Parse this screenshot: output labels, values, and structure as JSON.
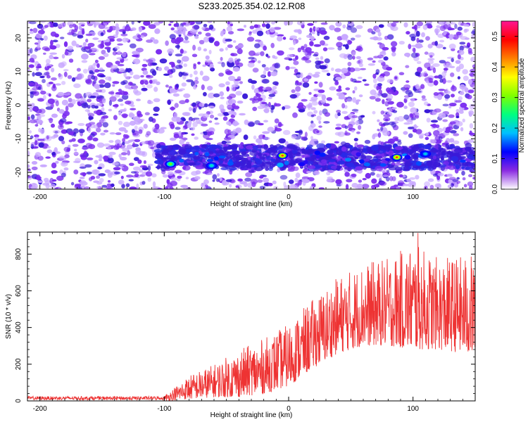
{
  "title": "S233.2025.354.02.12.R08",
  "colors": {
    "line": "#ee3333",
    "scatter_background": "#c8a8ff",
    "scatter_main": "#7a2cf0",
    "scatter_dark": "#3a1ad8"
  },
  "chart_data": [
    {
      "type": "heatmap",
      "xlabel": "Height of straight line (km)",
      "ylabel": "Frequency (Hz)",
      "xlim": [
        -210,
        150
      ],
      "ylim": [
        -25,
        25
      ],
      "xticks": [
        -200,
        -100,
        0,
        100
      ],
      "yticks": [
        -20,
        -10,
        0,
        10,
        20
      ],
      "grid": false,
      "colorbar": {
        "label": "Normalized spectral amplitude",
        "range": [
          0.0,
          0.55
        ],
        "ticks": [
          "0.0",
          "0.1",
          "0.2",
          "0.3",
          "0.4",
          "0.5"
        ],
        "colormap": [
          "#ffffff",
          "#8a2be2",
          "#0000ff",
          "#00bfff",
          "#00ff80",
          "#7fff00",
          "#ffff00",
          "#ff8000",
          "#ff0000",
          "#ff1493"
        ]
      },
      "noise_band": {
        "frequency_range": [
          -20,
          25
        ],
        "amplitude": 0.04
      },
      "signal_band": {
        "frequency_range": [
          -19,
          -12
        ],
        "x_start": -105,
        "description_values": [
          0.1,
          0.3
        ]
      },
      "hot_spots": [
        {
          "x": -95,
          "y": -17.5,
          "amplitude": 0.3
        },
        {
          "x": -5,
          "y": -15,
          "amplitude": 0.45
        },
        {
          "x": 87,
          "y": -15.5,
          "amplitude": 0.45
        },
        {
          "x": -62,
          "y": -18,
          "amplitude": 0.22
        },
        {
          "x": 110,
          "y": -14.5,
          "amplitude": 0.2
        }
      ]
    },
    {
      "type": "line",
      "xlabel": "Height of straight line (km)",
      "ylabel": "SNR (10 * v/v)",
      "xlim": [
        -210,
        150
      ],
      "ylim": [
        0,
        920
      ],
      "xticks": [
        -200,
        -100,
        0,
        100
      ],
      "yticks": [
        0,
        200,
        400,
        600,
        800
      ],
      "grid": false,
      "series": [
        {
          "envelope": [
            {
              "x": -210,
              "low": 0,
              "high": 30
            },
            {
              "x": -100,
              "low": 0,
              "high": 30
            },
            {
              "x": -80,
              "low": 10,
              "high": 140
            },
            {
              "x": -60,
              "low": 20,
              "high": 200
            },
            {
              "x": -40,
              "low": 20,
              "high": 280
            },
            {
              "x": -20,
              "low": 40,
              "high": 340
            },
            {
              "x": 0,
              "low": 80,
              "high": 420
            },
            {
              "x": 20,
              "low": 180,
              "high": 560
            },
            {
              "x": 40,
              "low": 260,
              "high": 680
            },
            {
              "x": 60,
              "low": 300,
              "high": 750
            },
            {
              "x": 80,
              "low": 300,
              "high": 780
            },
            {
              "x": 100,
              "low": 280,
              "high": 860
            },
            {
              "x": 120,
              "low": 280,
              "high": 780
            },
            {
              "x": 150,
              "low": 250,
              "high": 800
            }
          ],
          "peak": {
            "x": 104,
            "value": 915
          }
        }
      ]
    }
  ]
}
